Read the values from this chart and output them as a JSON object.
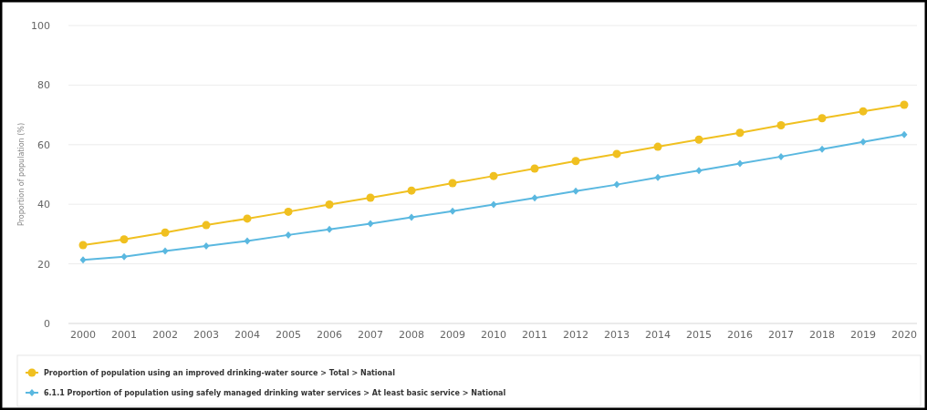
{
  "chart_data": {
    "type": "line",
    "ylabel": "Proportion of population (%)",
    "categories": [
      "2000",
      "2001",
      "2002",
      "2003",
      "2004",
      "2005",
      "2006",
      "2007",
      "2008",
      "2009",
      "2010",
      "2011",
      "2012",
      "2013",
      "2014",
      "2015",
      "2016",
      "2017",
      "2018",
      "2019",
      "2020"
    ],
    "series": [
      {
        "name": "Proportion of population using an improved drinking-water source > Total > National",
        "color": "#f0c020",
        "marker": "circle",
        "values": [
          26.3,
          28.2,
          30.5,
          33,
          35.2,
          37.5,
          39.9,
          42.2,
          44.6,
          47.1,
          49.5,
          52,
          54.5,
          56.9,
          59.3,
          61.7,
          64,
          66.5,
          68.9,
          71.2,
          73.4
        ]
      },
      {
        "name": "6.1.1 Proportion of population using safely managed drinking water services > At least basic service > National",
        "color": "#5ab8e0",
        "marker": "diamond",
        "values": [
          21.3,
          22.4,
          24.3,
          26,
          27.7,
          29.7,
          31.6,
          33.5,
          35.6,
          37.7,
          39.9,
          42.1,
          44.4,
          46.6,
          49,
          51.3,
          53.7,
          56,
          58.5,
          60.9,
          63.4
        ]
      }
    ],
    "ylim": [
      0,
      100
    ],
    "yticks": [
      0,
      20,
      40,
      60,
      80,
      100
    ],
    "grid": "y",
    "legend": "bottom"
  }
}
